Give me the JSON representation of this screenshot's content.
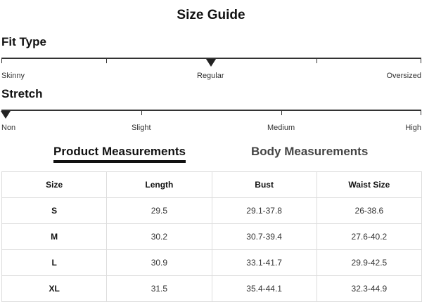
{
  "title": "Size Guide",
  "fit_type": {
    "heading": "Fit Type",
    "labels": [
      "Skinny",
      "Regular",
      "Oversized"
    ],
    "selected": "Regular"
  },
  "stretch": {
    "heading": "Stretch",
    "labels": [
      "Non",
      "Slight",
      "Medium",
      "High"
    ],
    "selected": "Non"
  },
  "tabs": [
    {
      "label": "Product Measurements",
      "active": true
    },
    {
      "label": "Body Measurements",
      "active": false
    }
  ],
  "table": {
    "headers": [
      "Size",
      "Length",
      "Bust",
      "Waist Size"
    ],
    "rows": [
      [
        "S",
        "29.5",
        "29.1-37.8",
        "26-38.6"
      ],
      [
        "M",
        "30.2",
        "30.7-39.4",
        "27.6-40.2"
      ],
      [
        "L",
        "30.9",
        "33.1-41.7",
        "29.9-42.5"
      ],
      [
        "XL",
        "31.5",
        "35.4-44.1",
        "32.3-44.9"
      ]
    ]
  }
}
